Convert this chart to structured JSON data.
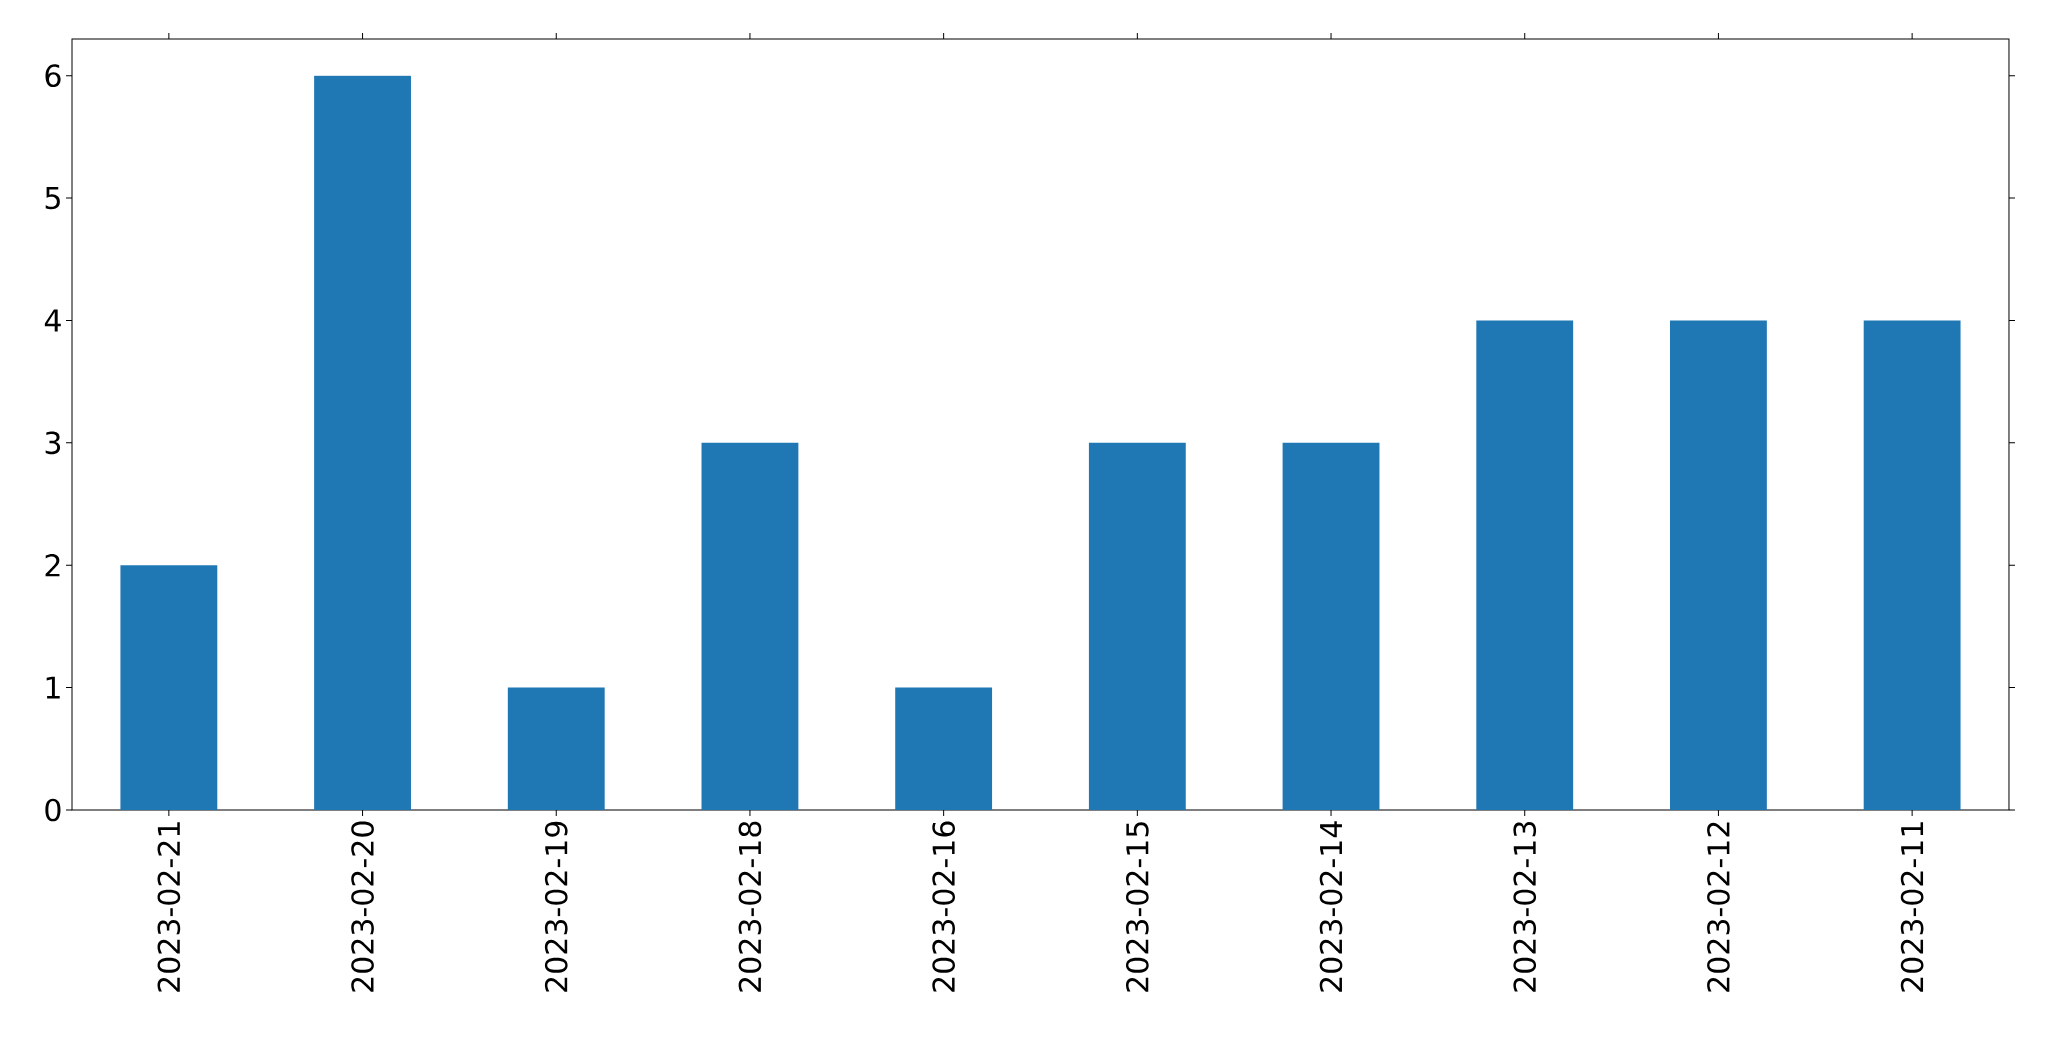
{
  "chart_data": {
    "type": "bar",
    "categories": [
      "2023-02-21",
      "2023-02-20",
      "2023-02-19",
      "2023-02-18",
      "2023-02-16",
      "2023-02-15",
      "2023-02-14",
      "2023-02-13",
      "2023-02-12",
      "2023-02-11"
    ],
    "values": [
      2,
      6,
      1,
      3,
      1,
      3,
      3,
      4,
      4,
      4
    ],
    "color": "#1f77b4",
    "ylim": [
      0,
      6.3
    ],
    "yticks": [
      0,
      1,
      2,
      3,
      4,
      5,
      6
    ]
  }
}
